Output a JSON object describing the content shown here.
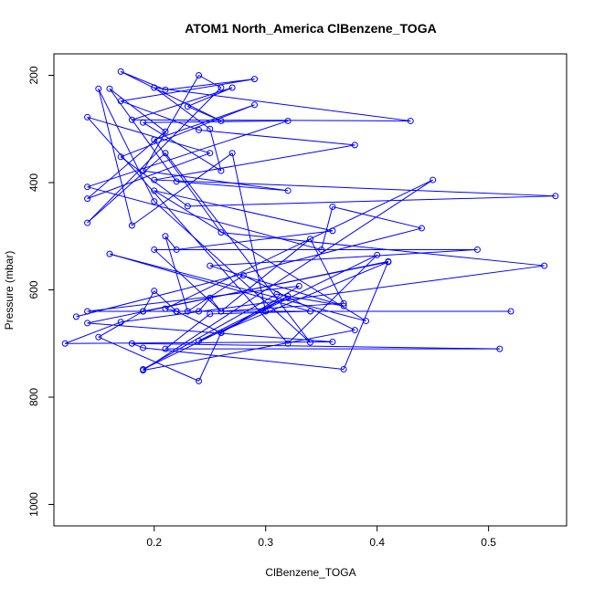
{
  "chart_data": {
    "type": "line",
    "title": "ATOM1 North_America ClBenzene_TOGA",
    "xlabel": "ClBenzene_TOGA",
    "ylabel": "Pressure (mbar)",
    "xlim": [
      0.11,
      0.57
    ],
    "ylim": [
      1040,
      160
    ],
    "y_reversed": true,
    "x_ticks": [
      0.2,
      0.3,
      0.4,
      0.5
    ],
    "y_ticks": [
      200,
      400,
      600,
      800,
      1000
    ],
    "series": [
      {
        "color": "#0000ff",
        "marker": "open-circle",
        "points": [
          [
            0.13,
            650
          ],
          [
            0.44,
            485
          ],
          [
            0.36,
            445
          ],
          [
            0.35,
            525
          ],
          [
            0.14,
            408
          ],
          [
            0.32,
            285
          ],
          [
            0.19,
            288
          ],
          [
            0.26,
            378
          ],
          [
            0.25,
            300
          ],
          [
            0.2,
            223
          ],
          [
            0.43,
            285
          ],
          [
            0.18,
            283
          ],
          [
            0.27,
            223
          ],
          [
            0.23,
            258
          ],
          [
            0.26,
            285
          ],
          [
            0.17,
            193
          ],
          [
            0.21,
            227
          ],
          [
            0.29,
            207
          ],
          [
            0.17,
            248
          ],
          [
            0.24,
            302
          ],
          [
            0.38,
            330
          ],
          [
            0.2,
            395
          ],
          [
            0.56,
            425
          ],
          [
            0.23,
            444
          ],
          [
            0.17,
            352
          ],
          [
            0.29,
            255
          ],
          [
            0.2,
            320
          ],
          [
            0.26,
            493
          ],
          [
            0.55,
            555
          ],
          [
            0.17,
            660
          ],
          [
            0.12,
            700
          ],
          [
            0.36,
            697
          ],
          [
            0.14,
            662
          ],
          [
            0.41,
            547
          ],
          [
            0.37,
            748
          ],
          [
            0.19,
            708
          ],
          [
            0.18,
            700
          ],
          [
            0.51,
            710
          ],
          [
            0.21,
            710
          ],
          [
            0.25,
            645
          ],
          [
            0.34,
            640
          ],
          [
            0.16,
            533
          ],
          [
            0.39,
            658
          ],
          [
            0.2,
            415
          ],
          [
            0.36,
            490
          ],
          [
            0.22,
            525
          ],
          [
            0.21,
            500
          ],
          [
            0.23,
            640
          ],
          [
            0.28,
            573
          ],
          [
            0.38,
            675
          ],
          [
            0.19,
            750
          ],
          [
            0.45,
            395
          ],
          [
            0.21,
            635
          ],
          [
            0.22,
            640
          ],
          [
            0.26,
            680
          ],
          [
            0.24,
            770
          ],
          [
            0.15,
            688
          ],
          [
            0.19,
            640
          ],
          [
            0.2,
            602
          ],
          [
            0.22,
            640
          ],
          [
            0.52,
            640
          ],
          [
            0.24,
            640
          ],
          [
            0.25,
            615
          ],
          [
            0.26,
            640
          ],
          [
            0.37,
            625
          ],
          [
            0.34,
            505
          ],
          [
            0.26,
            640
          ],
          [
            0.2,
            525
          ],
          [
            0.49,
            525
          ],
          [
            0.25,
            555
          ],
          [
            0.37,
            630
          ],
          [
            0.31,
            608
          ],
          [
            0.19,
            748
          ],
          [
            0.4,
            535
          ],
          [
            0.32,
            700
          ],
          [
            0.14,
            278
          ],
          [
            0.25,
            345
          ],
          [
            0.14,
            430
          ],
          [
            0.21,
            305
          ],
          [
            0.16,
            225
          ],
          [
            0.22,
            398
          ],
          [
            0.32,
            415
          ],
          [
            0.19,
            378
          ],
          [
            0.24,
            200
          ],
          [
            0.26,
            223
          ],
          [
            0.14,
            475
          ],
          [
            0.21,
            345
          ],
          [
            0.34,
            698
          ],
          [
            0.2,
            435
          ],
          [
            0.15,
            225
          ],
          [
            0.18,
            480
          ],
          [
            0.27,
            345
          ],
          [
            0.3,
            640
          ],
          [
            0.14,
            640
          ],
          [
            0.33,
            593
          ],
          [
            0.26,
            680
          ],
          [
            0.32,
            612
          ],
          [
            0.24,
            695
          ],
          [
            0.41,
            548
          ],
          [
            0.19,
            640
          ]
        ]
      }
    ]
  }
}
